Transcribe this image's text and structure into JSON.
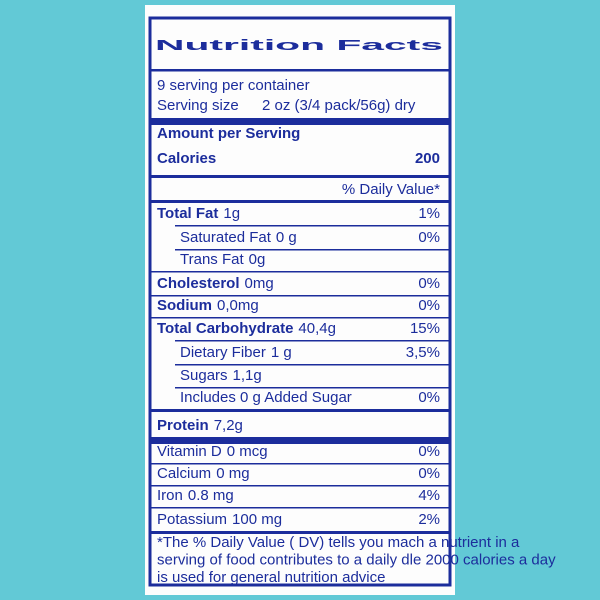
{
  "title": "Nutrition Facts",
  "servings": "9 serving per container",
  "serving_size": {
    "label": "Serving size",
    "value": "2 oz (3/4 pack/56g) dry"
  },
  "amount_per_serving": "Amount per Serving",
  "calories": {
    "label": "Calories",
    "value": "200"
  },
  "daily_value_header": "% Daily Value*",
  "rows": [
    {
      "label": "Total Fat",
      "amount": "1g",
      "dv": "1%",
      "bold": true
    },
    {
      "label": "Saturated Fat",
      "amount": "0 g",
      "dv": "0%",
      "indent": true
    },
    {
      "label": "Trans Fat",
      "amount": "0g",
      "indent": true
    },
    {
      "label": "Cholesterol",
      "amount": "0mg",
      "dv": "0%",
      "bold": true
    },
    {
      "label": "Sodium",
      "amount": "0,0mg",
      "dv": "0%",
      "bold": true
    },
    {
      "label": "Total Carbohydrate",
      "amount": "40,4g",
      "dv": "15%",
      "bold": true
    },
    {
      "label": "Dietary Fiber",
      "amount": "1 g",
      "dv": "3,5%",
      "indent": true
    },
    {
      "label": "Sugars",
      "amount": "1,1g",
      "indent": true
    },
    {
      "label": "Includes 0 g Added Sugar",
      "dv": "0%",
      "indent": true
    },
    {
      "label": "Protein",
      "amount": "7,2g",
      "bold": true
    },
    {
      "label": "Vitamin D",
      "amount": "0 mcg",
      "dv": "0%"
    },
    {
      "label": "Calcium",
      "amount": "0 mg",
      "dv": "0%"
    },
    {
      "label": "Iron",
      "amount": "0.8 mg",
      "dv": "4%"
    },
    {
      "label": "Potassium",
      "amount": "100 mg",
      "dv": "2%"
    }
  ],
  "footnote": [
    "*The % Daily Value ( DV) tells you mach a nutrient in a",
    "serving of food contributes to a daily dle 2000 calories a day",
    "is used for general nutrition advice"
  ]
}
